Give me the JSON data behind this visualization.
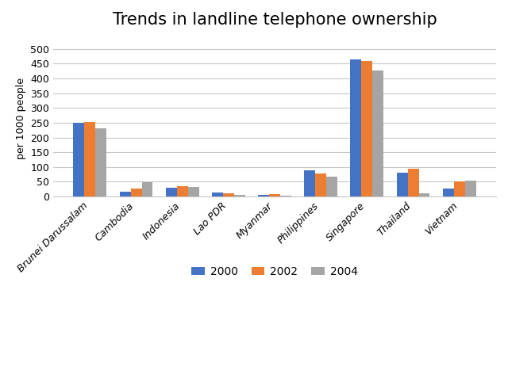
{
  "title": "Trends in landline telephone ownership",
  "ylabel": "per 1000 people",
  "categories": [
    "Brunei Darussalam",
    "Cambodia",
    "Indonesia",
    "Lao PDR",
    "Myanmar",
    "Philippines",
    "Singapore",
    "Thailand",
    "Vietnam"
  ],
  "series": {
    "2000": [
      250,
      17,
      30,
      13,
      7,
      89,
      463,
      80,
      28
    ],
    "2002": [
      253,
      27,
      35,
      11,
      9,
      79,
      458,
      93,
      50
    ],
    "2004": [
      231,
      49,
      32,
      5,
      4,
      68,
      427,
      10,
      55
    ]
  },
  "colors": {
    "2000": "#4472C4",
    "2002": "#ED7D31",
    "2004": "#A5A5A5"
  },
  "ylim": [
    0,
    530
  ],
  "yticks": [
    0,
    50,
    100,
    150,
    200,
    250,
    300,
    350,
    400,
    450,
    500
  ],
  "bar_width": 0.24,
  "legend_labels": [
    "2000",
    "2002",
    "2004"
  ],
  "background_color": "#FFFFFF",
  "grid_color": "#C8C8C8",
  "title_fontsize": 15,
  "ylabel_fontsize": 9,
  "tick_fontsize": 9,
  "legend_fontsize": 10
}
